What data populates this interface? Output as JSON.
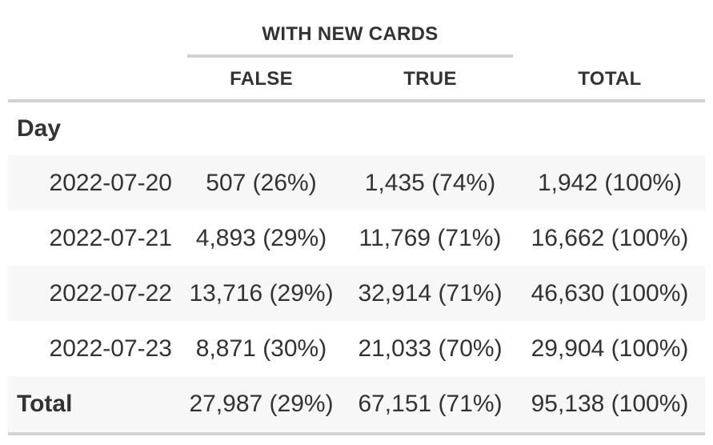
{
  "spanner": "WITH NEW CARDS",
  "columns": [
    "",
    "FALSE",
    "TRUE",
    "TOTAL"
  ],
  "group_label": "Day",
  "rows": [
    {
      "label": "2022-07-20",
      "false": "507 (26%)",
      "true": "1,435 (74%)",
      "total": "1,942 (100%)"
    },
    {
      "label": "2022-07-21",
      "false": "4,893 (29%)",
      "true": "11,769 (71%)",
      "total": "16,662 (100%)"
    },
    {
      "label": "2022-07-22",
      "false": "13,716 (29%)",
      "true": "32,914 (71%)",
      "total": "46,630 (100%)"
    },
    {
      "label": "2022-07-23",
      "false": "8,871 (30%)",
      "true": "21,033 (70%)",
      "total": "29,904 (100%)"
    }
  ],
  "total_row": {
    "label": "Total",
    "false": "27,987 (29%)",
    "true": "67,151 (71%)",
    "total": "95,138 (100%)"
  }
}
